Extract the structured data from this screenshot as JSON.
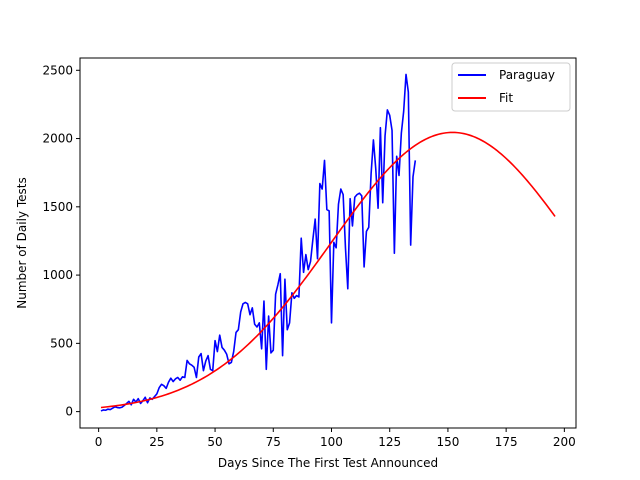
{
  "chart_data": {
    "type": "line",
    "xlabel": "Days Since The First Test Announced",
    "ylabel": "Number of Daily Tests",
    "xlim": [
      -8,
      205
    ],
    "ylim": [
      -120,
      2590
    ],
    "x_ticks": [
      0,
      25,
      50,
      75,
      100,
      125,
      150,
      175,
      200
    ],
    "y_ticks": [
      0,
      500,
      1000,
      1500,
      2000,
      2500
    ],
    "grid": false,
    "legend_position": "top-right",
    "series": [
      {
        "name": "Paraguay",
        "color": "#0000ff",
        "points": [
          [
            1,
            5
          ],
          [
            2,
            12
          ],
          [
            3,
            10
          ],
          [
            4,
            18
          ],
          [
            5,
            15
          ],
          [
            6,
            25
          ],
          [
            7,
            35
          ],
          [
            8,
            30
          ],
          [
            9,
            28
          ],
          [
            10,
            32
          ],
          [
            11,
            45
          ],
          [
            12,
            60
          ],
          [
            13,
            75
          ],
          [
            14,
            50
          ],
          [
            15,
            90
          ],
          [
            16,
            70
          ],
          [
            17,
            95
          ],
          [
            18,
            60
          ],
          [
            19,
            80
          ],
          [
            20,
            105
          ],
          [
            21,
            65
          ],
          [
            22,
            100
          ],
          [
            23,
            90
          ],
          [
            24,
            110
          ],
          [
            25,
            130
          ],
          [
            26,
            175
          ],
          [
            27,
            200
          ],
          [
            28,
            190
          ],
          [
            29,
            170
          ],
          [
            30,
            215
          ],
          [
            31,
            245
          ],
          [
            32,
            220
          ],
          [
            33,
            240
          ],
          [
            34,
            250
          ],
          [
            35,
            230
          ],
          [
            36,
            255
          ],
          [
            37,
            250
          ],
          [
            38,
            375
          ],
          [
            39,
            350
          ],
          [
            40,
            340
          ],
          [
            41,
            325
          ],
          [
            42,
            250
          ],
          [
            43,
            400
          ],
          [
            44,
            425
          ],
          [
            45,
            300
          ],
          [
            46,
            370
          ],
          [
            47,
            410
          ],
          [
            48,
            310
          ],
          [
            49,
            300
          ],
          [
            50,
            520
          ],
          [
            51,
            440
          ],
          [
            52,
            560
          ],
          [
            53,
            470
          ],
          [
            54,
            450
          ],
          [
            55,
            420
          ],
          [
            56,
            350
          ],
          [
            57,
            360
          ],
          [
            58,
            440
          ],
          [
            59,
            580
          ],
          [
            60,
            600
          ],
          [
            61,
            730
          ],
          [
            62,
            790
          ],
          [
            63,
            800
          ],
          [
            64,
            790
          ],
          [
            65,
            710
          ],
          [
            66,
            760
          ],
          [
            67,
            640
          ],
          [
            68,
            620
          ],
          [
            69,
            650
          ],
          [
            70,
            460
          ],
          [
            71,
            810
          ],
          [
            72,
            310
          ],
          [
            73,
            700
          ],
          [
            74,
            430
          ],
          [
            75,
            450
          ],
          [
            76,
            860
          ],
          [
            77,
            930
          ],
          [
            78,
            1010
          ],
          [
            79,
            410
          ],
          [
            80,
            970
          ],
          [
            81,
            600
          ],
          [
            82,
            650
          ],
          [
            83,
            870
          ],
          [
            84,
            830
          ],
          [
            85,
            850
          ],
          [
            86,
            840
          ],
          [
            87,
            1270
          ],
          [
            88,
            1020
          ],
          [
            89,
            1150
          ],
          [
            90,
            1040
          ],
          [
            91,
            1100
          ],
          [
            92,
            1260
          ],
          [
            93,
            1410
          ],
          [
            94,
            1120
          ],
          [
            95,
            1670
          ],
          [
            96,
            1630
          ],
          [
            97,
            1840
          ],
          [
            98,
            1480
          ],
          [
            99,
            1470
          ],
          [
            100,
            650
          ],
          [
            101,
            1240
          ],
          [
            102,
            1200
          ],
          [
            103,
            1520
          ],
          [
            104,
            1630
          ],
          [
            105,
            1590
          ],
          [
            106,
            1200
          ],
          [
            107,
            900
          ],
          [
            108,
            1560
          ],
          [
            109,
            1360
          ],
          [
            110,
            1570
          ],
          [
            111,
            1590
          ],
          [
            112,
            1600
          ],
          [
            113,
            1580
          ],
          [
            114,
            1060
          ],
          [
            115,
            1320
          ],
          [
            116,
            1350
          ],
          [
            117,
            1740
          ],
          [
            118,
            1990
          ],
          [
            119,
            1780
          ],
          [
            120,
            1490
          ],
          [
            121,
            2080
          ],
          [
            122,
            1530
          ],
          [
            123,
            2020
          ],
          [
            124,
            2210
          ],
          [
            125,
            2170
          ],
          [
            126,
            2060
          ],
          [
            127,
            1160
          ],
          [
            128,
            1870
          ],
          [
            129,
            1730
          ],
          [
            130,
            2040
          ],
          [
            131,
            2200
          ],
          [
            132,
            2470
          ],
          [
            133,
            2340
          ],
          [
            134,
            1220
          ],
          [
            135,
            1720
          ],
          [
            136,
            1840
          ]
        ]
      },
      {
        "name": "Fit",
        "color": "#ff0000",
        "fit": {
          "form": "gaussian",
          "amplitude": 2045,
          "center": 152,
          "width": 52
        },
        "x_range": [
          1,
          196
        ]
      }
    ]
  }
}
